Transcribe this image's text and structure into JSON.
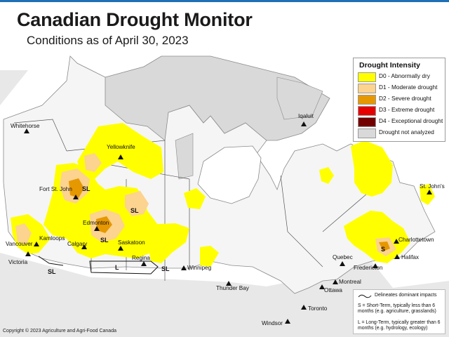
{
  "header": {
    "title": "Canadian Drought Monitor",
    "subtitle": "Conditions as of April 30, 2023"
  },
  "legend": {
    "title": "Drought Intensity",
    "items": [
      {
        "label": "D0 - Abnormally dry",
        "color": "#ffff00"
      },
      {
        "label": "D1 - Moderate drought",
        "color": "#fcd38f"
      },
      {
        "label": "D2 - Severe drought",
        "color": "#e69800"
      },
      {
        "label": "D3 - Extreme drought",
        "color": "#e60000"
      },
      {
        "label": "D4 - Exceptional drought",
        "color": "#730000"
      },
      {
        "label": "Drought not analyzed",
        "color": "#d9d9d9"
      }
    ]
  },
  "impacts": {
    "line_label": "Delineates dominant impacts",
    "short_term": "S = Short-Term, typically less than 6 months (e.g. agriculture, grasslands)",
    "long_term": "L = Long-Term, typically greater than 6 months (e.g. hydrology, ecology)"
  },
  "cities": {
    "whitehorse": "Whitehorse",
    "yellowknife": "Yellowknife",
    "iqaluit": "Iqaluit",
    "fort_st_john": "Fort St. John",
    "edmonton": "Edmonton",
    "kamloops": "Kamloops",
    "calgary": "Calgary",
    "saskatoon": "Saskatoon",
    "vancouver": "Vancouver",
    "victoria": "Victoria",
    "regina": "Regina",
    "winnipeg": "Winnipeg",
    "thunder_bay": "Thunder Bay",
    "quebec": "Quebec",
    "montreal": "Montreal",
    "ottawa": "Ottawa",
    "toronto": "Toronto",
    "windsor": "Windsor",
    "fredericton": "Fredericton",
    "charlottetown": "Charlottetown",
    "halifax": "Halifax",
    "st_johns": "St. John's"
  },
  "impact_labels": {
    "sl": "SL",
    "l": "L",
    "s": "S"
  },
  "colors": {
    "water": "#ffffff",
    "land": "#f5f5f5",
    "not_analyzed": "#d9d9d9",
    "us_land": "#e8e8e8",
    "header_rule": "#1f6fb5"
  },
  "copyright": "Copyright © 2023 Agriculture and Agri-Food Canada"
}
